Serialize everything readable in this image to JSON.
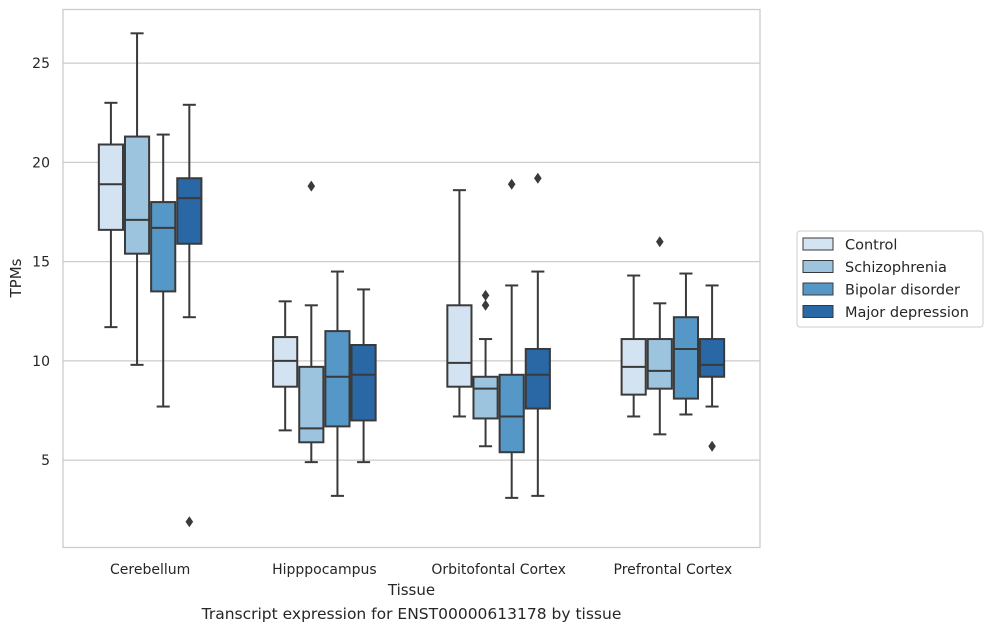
{
  "caption": "Transcript expression for ENST00000613178 by tissue",
  "chart_data": {
    "type": "box",
    "xlabel": "Tissue",
    "ylabel": "TPMs",
    "categories": [
      "Cerebellum",
      "Hipppocampus",
      "Orbitofontal Cortex",
      "Prefrontal Cortex"
    ],
    "ylim": [
      0.6,
      27.7
    ],
    "yticks": [
      5,
      10,
      15,
      20,
      25
    ],
    "grid": "horizontal",
    "legend_position": "right",
    "series": [
      {
        "name": "Control",
        "color": "#d4e3f1",
        "boxes": [
          {
            "whislo": 11.7,
            "q1": 16.6,
            "med": 18.9,
            "q3": 20.9,
            "whishi": 23.0,
            "fliers": []
          },
          {
            "whislo": 6.5,
            "q1": 8.7,
            "med": 10.0,
            "q3": 11.2,
            "whishi": 13.0,
            "fliers": []
          },
          {
            "whislo": 7.2,
            "q1": 8.7,
            "med": 9.9,
            "q3": 12.8,
            "whishi": 18.6,
            "fliers": []
          },
          {
            "whislo": 7.2,
            "q1": 8.3,
            "med": 9.7,
            "q3": 11.1,
            "whishi": 14.3,
            "fliers": []
          }
        ]
      },
      {
        "name": "Schizophrenia",
        "color": "#9cc4de",
        "boxes": [
          {
            "whislo": 9.8,
            "q1": 15.4,
            "med": 17.1,
            "q3": 21.3,
            "whishi": 26.5,
            "fliers": []
          },
          {
            "whislo": 4.9,
            "q1": 5.9,
            "med": 6.6,
            "q3": 9.7,
            "whishi": 12.8,
            "fliers": [
              18.8
            ]
          },
          {
            "whislo": 5.7,
            "q1": 7.1,
            "med": 8.6,
            "q3": 9.2,
            "whishi": 11.1,
            "fliers": [
              12.8,
              13.3
            ]
          },
          {
            "whislo": 6.3,
            "q1": 8.6,
            "med": 9.5,
            "q3": 11.1,
            "whishi": 12.9,
            "fliers": [
              16.0
            ]
          }
        ]
      },
      {
        "name": "Bipolar disorder",
        "color": "#5597c6",
        "boxes": [
          {
            "whislo": 7.7,
            "q1": 13.5,
            "med": 16.7,
            "q3": 18.0,
            "whishi": 21.4,
            "fliers": []
          },
          {
            "whislo": 3.2,
            "q1": 6.7,
            "med": 9.2,
            "q3": 11.5,
            "whishi": 14.5,
            "fliers": []
          },
          {
            "whislo": 3.1,
            "q1": 5.4,
            "med": 7.2,
            "q3": 9.3,
            "whishi": 13.8,
            "fliers": [
              18.9
            ]
          },
          {
            "whislo": 7.3,
            "q1": 8.1,
            "med": 10.6,
            "q3": 12.2,
            "whishi": 14.4,
            "fliers": []
          }
        ]
      },
      {
        "name": "Major depression",
        "color": "#2a67a5",
        "boxes": [
          {
            "whislo": 12.2,
            "q1": 15.9,
            "med": 18.2,
            "q3": 19.2,
            "whishi": 22.9,
            "fliers": [
              1.9
            ]
          },
          {
            "whislo": 4.9,
            "q1": 7.0,
            "med": 9.3,
            "q3": 10.8,
            "whishi": 13.6,
            "fliers": []
          },
          {
            "whislo": 3.2,
            "q1": 7.6,
            "med": 9.3,
            "q3": 10.6,
            "whishi": 14.5,
            "fliers": [
              19.2
            ]
          },
          {
            "whislo": 7.7,
            "q1": 9.2,
            "med": 9.8,
            "q3": 11.1,
            "whishi": 13.8,
            "fliers": [
              5.7
            ]
          }
        ]
      }
    ]
  }
}
